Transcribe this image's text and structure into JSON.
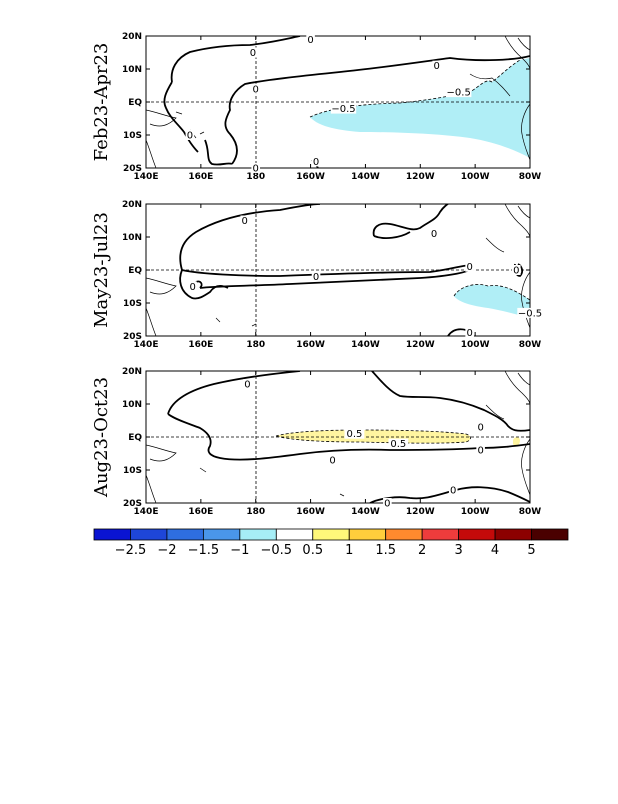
{
  "figure": {
    "panels": [
      {
        "title": "Feb23-Apr23",
        "contour_labels": [
          {
            "text": "0",
            "lon": 179,
            "lat": 15
          },
          {
            "text": "0",
            "lon": 200,
            "lat": 19
          },
          {
            "text": "0",
            "lon": 246,
            "lat": 11
          },
          {
            "text": "0",
            "lon": 180,
            "lat": 4
          },
          {
            "text": "0",
            "lon": 156,
            "lat": -10
          },
          {
            "text": "0",
            "lon": 180,
            "lat": -20
          },
          {
            "text": "0",
            "lon": 202,
            "lat": -18
          },
          {
            "text": "-0.5",
            "lon": 254,
            "lat": 3
          },
          {
            "text": "-0.5",
            "lon": 212,
            "lat": -2
          }
        ]
      },
      {
        "title": "May23-Jul23",
        "contour_labels": [
          {
            "text": "0",
            "lon": 176,
            "lat": 15
          },
          {
            "text": "0",
            "lon": 245,
            "lat": 11
          },
          {
            "text": "0",
            "lon": 202,
            "lat": -2
          },
          {
            "text": "0",
            "lon": 258,
            "lat": 1
          },
          {
            "text": "0",
            "lon": 275,
            "lat": 0
          },
          {
            "text": "0",
            "lon": 157,
            "lat": -5
          },
          {
            "text": "0",
            "lon": 258,
            "lat": -19
          },
          {
            "text": "-0.5",
            "lon": 280,
            "lat": -13
          }
        ]
      },
      {
        "title": "Aug23-Oct23",
        "contour_labels": [
          {
            "text": "0",
            "lon": 177,
            "lat": 16
          },
          {
            "text": "0",
            "lon": 262,
            "lat": 3
          },
          {
            "text": "0",
            "lon": 262,
            "lat": -4
          },
          {
            "text": "0",
            "lon": 208,
            "lat": -7
          },
          {
            "text": "0",
            "lon": 252,
            "lat": -16
          },
          {
            "text": "0",
            "lon": 228,
            "lat": -20
          },
          {
            "text": "0.5",
            "lon": 216,
            "lat": 1
          },
          {
            "text": "0.5",
            "lon": 232,
            "lat": -2
          }
        ]
      }
    ],
    "x_ticks": [
      "140E",
      "160E",
      "180",
      "160W",
      "140W",
      "120W",
      "100W",
      "80W"
    ],
    "y_ticks": [
      "20N",
      "10N",
      "EQ",
      "10S",
      "20S"
    ],
    "lon_range": [
      140,
      280
    ],
    "lat_range": [
      -20,
      20
    ],
    "colorbar": {
      "labels": [
        "-2.5",
        "-2",
        "-1.5",
        "-1",
        "-0.5",
        "0.5",
        "1",
        "1.5",
        "2",
        "3",
        "4",
        "5"
      ],
      "colors": [
        "#0a14d2",
        "#1e46d8",
        "#2e6ee0",
        "#4a96ea",
        "#a6eef6",
        "#ffffff",
        "#fff87a",
        "#ffce3c",
        "#ff8a2e",
        "#ee3c3c",
        "#c40a0a",
        "#8c0000",
        "#4a0000"
      ]
    },
    "fill_colors": {
      "negative": "#b0eef6",
      "positive": "#fff5a0"
    }
  }
}
